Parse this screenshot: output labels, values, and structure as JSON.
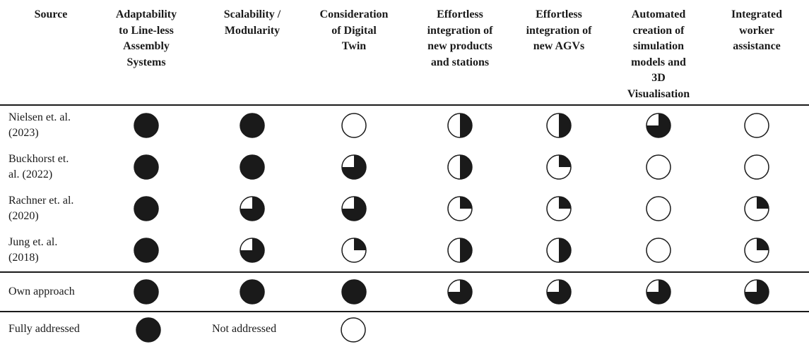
{
  "table": {
    "headers": [
      "Source",
      "Adaptability\nto Line-less\nAssembly\nSystems",
      "Scalability /\nModularity",
      "Consideration\nof Digital\nTwin",
      "Effortless\nintegration of\nnew products\nand stations",
      "Effortless\nintegration of\nnew AGVs",
      "Automated\ncreation of\nsimulation\nmodels and\n3D\nVisualisation",
      "Integrated\nworker\nassistance"
    ],
    "rows": [
      {
        "source": "Nielsen et. al.\n(2023)",
        "levels": [
          1,
          1,
          0,
          0.5,
          0.5,
          0.75,
          0
        ]
      },
      {
        "source": "Buckhorst et.\nal. (2022)",
        "levels": [
          1,
          1,
          0.75,
          0.5,
          0.25,
          0,
          0
        ]
      },
      {
        "source": "Rachner et. al.\n(2020)",
        "levels": [
          1,
          0.75,
          0.75,
          0.25,
          0.25,
          0,
          0.25
        ]
      },
      {
        "source": "Jung et. al.\n(2018)",
        "levels": [
          1,
          0.75,
          0.25,
          0.5,
          0.5,
          0,
          0.25
        ]
      },
      {
        "source": "Own approach",
        "levels": [
          1,
          1,
          1,
          0.75,
          0.75,
          0.75,
          0.75
        ]
      }
    ]
  },
  "legend": {
    "full_label": "Fully addressed",
    "full_level": 1,
    "none_label": "Not addressed",
    "none_level": 0
  }
}
